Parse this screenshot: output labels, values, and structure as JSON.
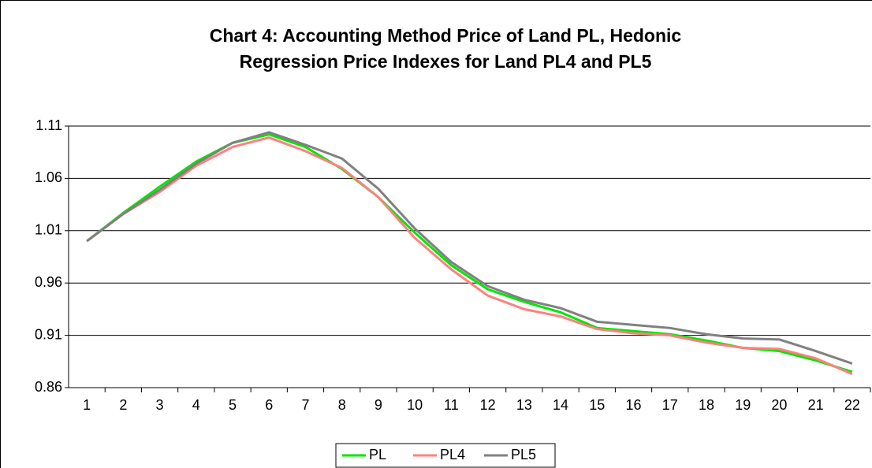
{
  "chart_data": {
    "type": "line",
    "title": [
      "Chart 4: Accounting Method Price of Land PL, Hedonic",
      "Regression Price Indexes for Land PL4 and PL5"
    ],
    "categories": [
      "1",
      "2",
      "3",
      "4",
      "5",
      "6",
      "7",
      "8",
      "9",
      "10",
      "11",
      "12",
      "13",
      "14",
      "15",
      "16",
      "17",
      "18",
      "19",
      "20",
      "21",
      "22"
    ],
    "series": [
      {
        "name": "PL",
        "color": "#00e600",
        "values": [
          1.0,
          1.027,
          1.052,
          1.076,
          1.094,
          1.102,
          1.09,
          1.069,
          1.042,
          1.008,
          0.977,
          0.954,
          0.942,
          0.932,
          0.917,
          0.914,
          0.911,
          0.905,
          0.898,
          0.895,
          0.886,
          0.875
        ]
      },
      {
        "name": "PL4",
        "color": "#ff8080",
        "values": [
          1.0,
          1.026,
          1.047,
          1.072,
          1.09,
          1.099,
          1.086,
          1.07,
          1.042,
          1.003,
          0.973,
          0.948,
          0.935,
          0.928,
          0.916,
          0.912,
          0.91,
          0.903,
          0.898,
          0.897,
          0.888,
          0.873
        ]
      },
      {
        "name": "PL5",
        "color": "#808080",
        "values": [
          1.0,
          1.026,
          1.049,
          1.074,
          1.094,
          1.104,
          1.092,
          1.079,
          1.05,
          1.012,
          0.98,
          0.957,
          0.944,
          0.936,
          0.923,
          0.92,
          0.917,
          0.911,
          0.907,
          0.906,
          0.895,
          0.883
        ]
      }
    ],
    "ylim": [
      0.86,
      1.11
    ],
    "yticks": [
      0.86,
      0.91,
      0.96,
      1.01,
      1.06,
      1.11
    ],
    "grid": true,
    "legend": "bottom"
  }
}
